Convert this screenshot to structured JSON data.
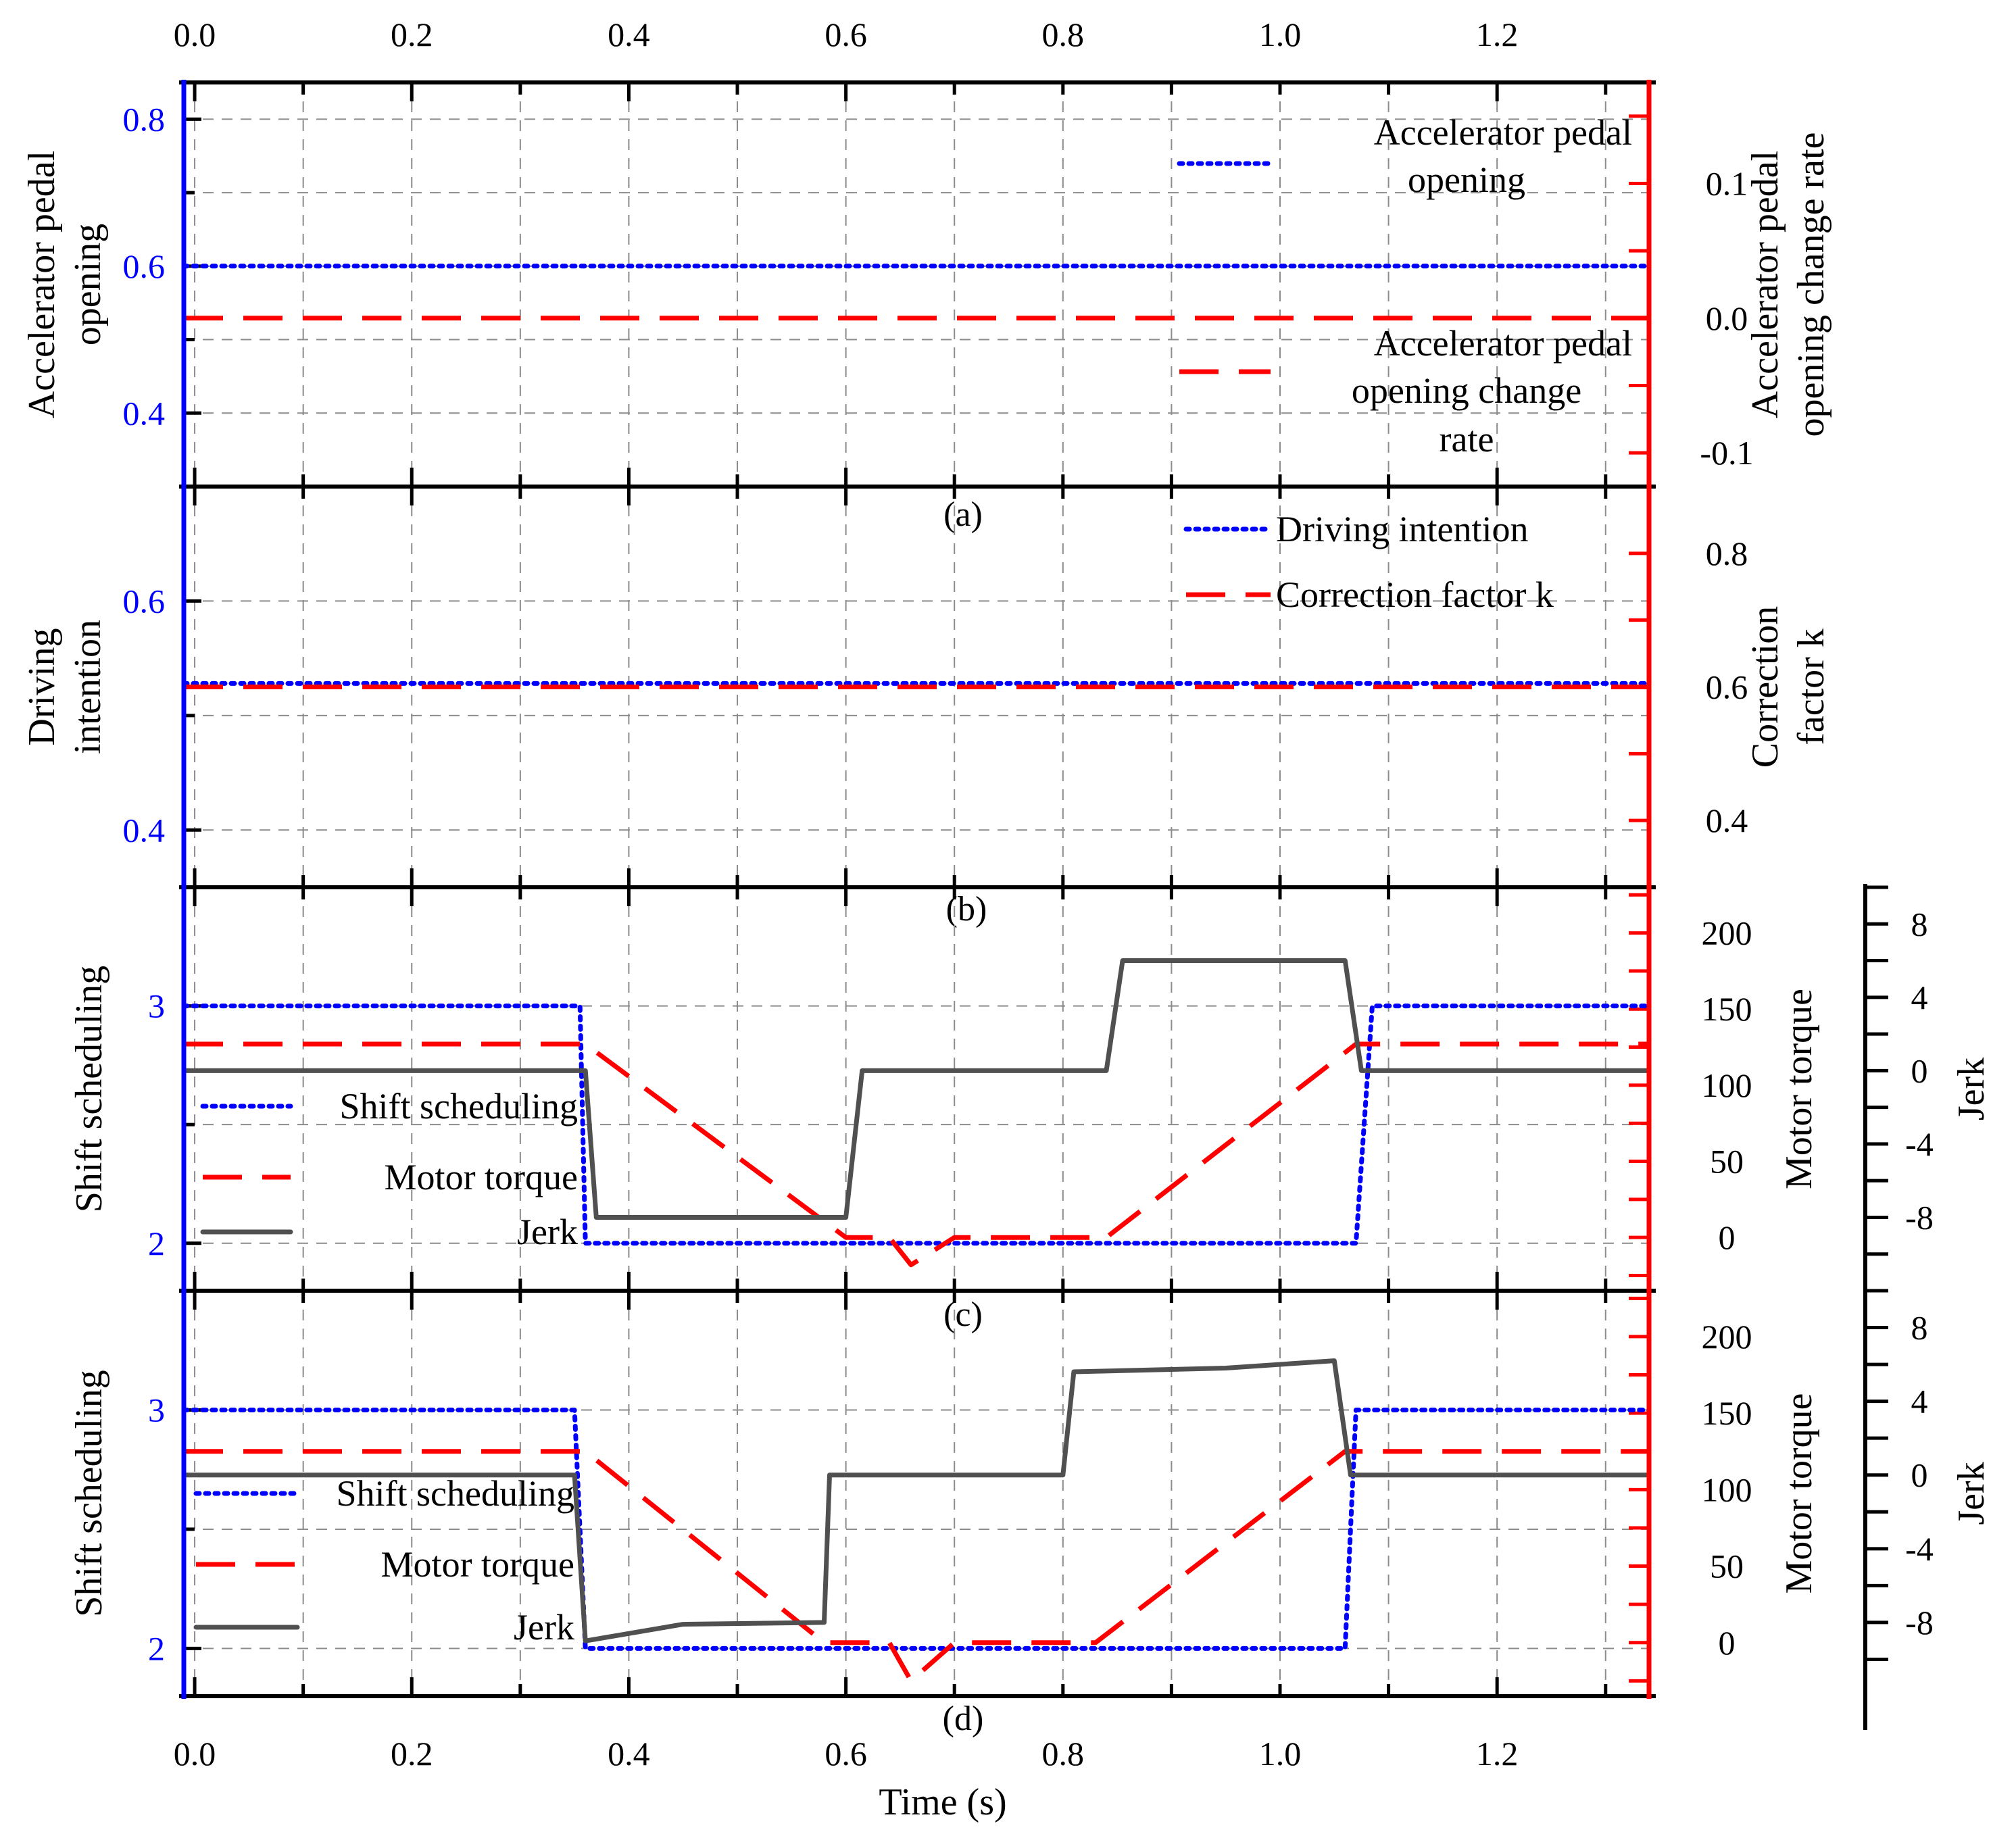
{
  "chart_data": {
    "type": "line",
    "x_axis": {
      "label": "Time (s)",
      "ticks": [
        0.0,
        0.2,
        0.4,
        0.6,
        0.8,
        1.0,
        1.2
      ],
      "tick_labels": [
        "0.0",
        "0.2",
        "0.4",
        "0.6",
        "0.8",
        "1.0",
        "1.2"
      ],
      "range": [
        -0.01,
        1.34
      ]
    },
    "panels": [
      {
        "id": "a",
        "panel_label": "(a)",
        "left_axis": {
          "label_lines": [
            "Accelerator pedal",
            "opening"
          ],
          "range": [
            0.3,
            0.85
          ],
          "ticks": [
            0.4,
            0.6,
            0.8
          ],
          "tick_labels": [
            "0.4",
            "0.6",
            "0.8"
          ]
        },
        "right_axis": {
          "label_lines": [
            "Accelerator pedal",
            "opening change rate"
          ],
          "range": [
            -0.125,
            0.175
          ],
          "ticks": [
            -0.1,
            0.0,
            0.1
          ],
          "tick_labels": [
            "-0.1",
            "0.0",
            "0.1"
          ]
        },
        "series": [
          {
            "name_lines": [
              "Accelerator pedal",
              "opening"
            ],
            "style": "dotted",
            "color": "#0000ff",
            "axis": "left",
            "points": [
              [
                -0.01,
                0.6
              ],
              [
                1.34,
                0.6
              ]
            ]
          },
          {
            "name_lines": [
              "Accelerator pedal",
              "opening change",
              "rate"
            ],
            "style": "dashed",
            "color": "#ff0000",
            "axis": "right",
            "points": [
              [
                -0.01,
                0.0
              ],
              [
                1.34,
                0.0
              ]
            ]
          }
        ]
      },
      {
        "id": "b",
        "panel_label": "(b)",
        "left_axis": {
          "label_lines": [
            "Driving",
            "intention"
          ],
          "range": [
            0.35,
            0.7
          ],
          "ticks": [
            0.4,
            0.6
          ],
          "tick_labels": [
            "0.4",
            "0.6"
          ]
        },
        "right_axis": {
          "label_lines": [
            "Correction",
            "factor k"
          ],
          "range": [
            0.3,
            0.9
          ],
          "ticks": [
            0.4,
            0.6,
            0.8
          ],
          "tick_labels": [
            "0.4",
            "0.6",
            "0.8"
          ]
        },
        "series": [
          {
            "name_lines": [
              "Driving intention"
            ],
            "style": "dotted",
            "color": "#0000ff",
            "axis": "left",
            "points": [
              [
                -0.01,
                0.528
              ],
              [
                1.34,
                0.528
              ]
            ]
          },
          {
            "name_lines": [
              "Correction factor k"
            ],
            "style": "dashed",
            "color": "#ff0000",
            "axis": "right",
            "points": [
              [
                -0.01,
                0.6
              ],
              [
                1.34,
                0.6
              ]
            ]
          }
        ]
      },
      {
        "id": "c",
        "panel_label": "(c)",
        "left_axis": {
          "label_lines": [
            "Shift scheduling"
          ],
          "range": [
            1.8,
            3.5
          ],
          "ticks": [
            2,
            3
          ],
          "tick_labels": [
            "2",
            "3"
          ]
        },
        "right_axis": {
          "label_lines": [
            "Motor torque"
          ],
          "range": [
            -35,
            230
          ],
          "ticks": [
            0,
            50,
            100,
            150,
            200
          ],
          "tick_labels": [
            "0",
            "50",
            "100",
            "150",
            "200"
          ]
        },
        "extra_axis": {
          "label_lines": [
            "Jerk"
          ],
          "range": [
            -12,
            10
          ],
          "ticks": [
            -8,
            -4,
            0,
            4,
            8
          ],
          "tick_labels": [
            "-8",
            "-4",
            "0",
            "4",
            "8"
          ]
        },
        "series": [
          {
            "name_lines": [
              "Shift scheduling"
            ],
            "style": "dotted",
            "color": "#0000ff",
            "axis": "left",
            "points": [
              [
                -0.01,
                3
              ],
              [
                0.355,
                3
              ],
              [
                0.36,
                2
              ],
              [
                1.07,
                2
              ],
              [
                1.085,
                3
              ],
              [
                1.34,
                3
              ]
            ]
          },
          {
            "name_lines": [
              "Motor torque"
            ],
            "style": "dashed",
            "color": "#ff0000",
            "axis": "right",
            "points": [
              [
                -0.01,
                127
              ],
              [
                0.36,
                127
              ],
              [
                0.6,
                0
              ],
              [
                0.64,
                0
              ],
              [
                0.66,
                -18
              ],
              [
                0.7,
                0
              ],
              [
                0.84,
                0
              ],
              [
                1.07,
                127
              ],
              [
                1.34,
                127
              ]
            ]
          },
          {
            "name_lines": [
              "Jerk"
            ],
            "style": "solid",
            "color": "#505050",
            "axis": "extra",
            "points": [
              [
                -0.01,
                0
              ],
              [
                0.36,
                0
              ],
              [
                0.37,
                -8
              ],
              [
                0.6,
                -8
              ],
              [
                0.615,
                0
              ],
              [
                0.84,
                0
              ],
              [
                0.855,
                6
              ],
              [
                1.06,
                6
              ],
              [
                1.075,
                0
              ],
              [
                1.34,
                0
              ]
            ]
          }
        ]
      },
      {
        "id": "d",
        "panel_label": "(d)",
        "left_axis": {
          "label_lines": [
            "Shift scheduling"
          ],
          "range": [
            1.8,
            3.5
          ],
          "ticks": [
            2,
            3
          ],
          "tick_labels": [
            "2",
            "3"
          ]
        },
        "right_axis": {
          "label_lines": [
            "Motor torque"
          ],
          "range": [
            -35,
            230
          ],
          "ticks": [
            0,
            50,
            100,
            150,
            200
          ],
          "tick_labels": [
            "0",
            "50",
            "100",
            "150",
            "200"
          ]
        },
        "extra_axis": {
          "label_lines": [
            "Jerk"
          ],
          "range": [
            -12,
            10
          ],
          "ticks": [
            -8,
            -4,
            0,
            4,
            8
          ],
          "tick_labels": [
            "-8",
            "-4",
            "0",
            "4",
            "8"
          ]
        },
        "series": [
          {
            "name_lines": [
              "Shift scheduling"
            ],
            "style": "dotted",
            "color": "#0000ff",
            "axis": "left",
            "points": [
              [
                -0.01,
                3
              ],
              [
                0.35,
                3
              ],
              [
                0.36,
                2
              ],
              [
                1.06,
                2
              ],
              [
                1.07,
                3
              ],
              [
                1.34,
                3
              ]
            ]
          },
          {
            "name_lines": [
              "Motor torque"
            ],
            "style": "dashed",
            "color": "#ff0000",
            "axis": "right",
            "points": [
              [
                -0.01,
                125
              ],
              [
                0.36,
                125
              ],
              [
                0.58,
                0
              ],
              [
                0.64,
                0
              ],
              [
                0.66,
                -25
              ],
              [
                0.7,
                0
              ],
              [
                0.83,
                0
              ],
              [
                1.06,
                125
              ],
              [
                1.34,
                125
              ]
            ]
          },
          {
            "name_lines": [
              "Jerk"
            ],
            "style": "solid",
            "color": "#505050",
            "axis": "extra",
            "points": [
              [
                -0.01,
                0
              ],
              [
                0.35,
                0
              ],
              [
                0.36,
                -9
              ],
              [
                0.45,
                -8.1
              ],
              [
                0.58,
                -8
              ],
              [
                0.585,
                0
              ],
              [
                0.8,
                0
              ],
              [
                0.81,
                5.6
              ],
              [
                0.95,
                5.8
              ],
              [
                1.05,
                6.2
              ],
              [
                1.065,
                0
              ],
              [
                1.34,
                0
              ]
            ]
          }
        ]
      }
    ]
  },
  "colors": {
    "left_axis": "#0000ff",
    "right_axis": "#ff0000",
    "jerk": "#505050"
  }
}
